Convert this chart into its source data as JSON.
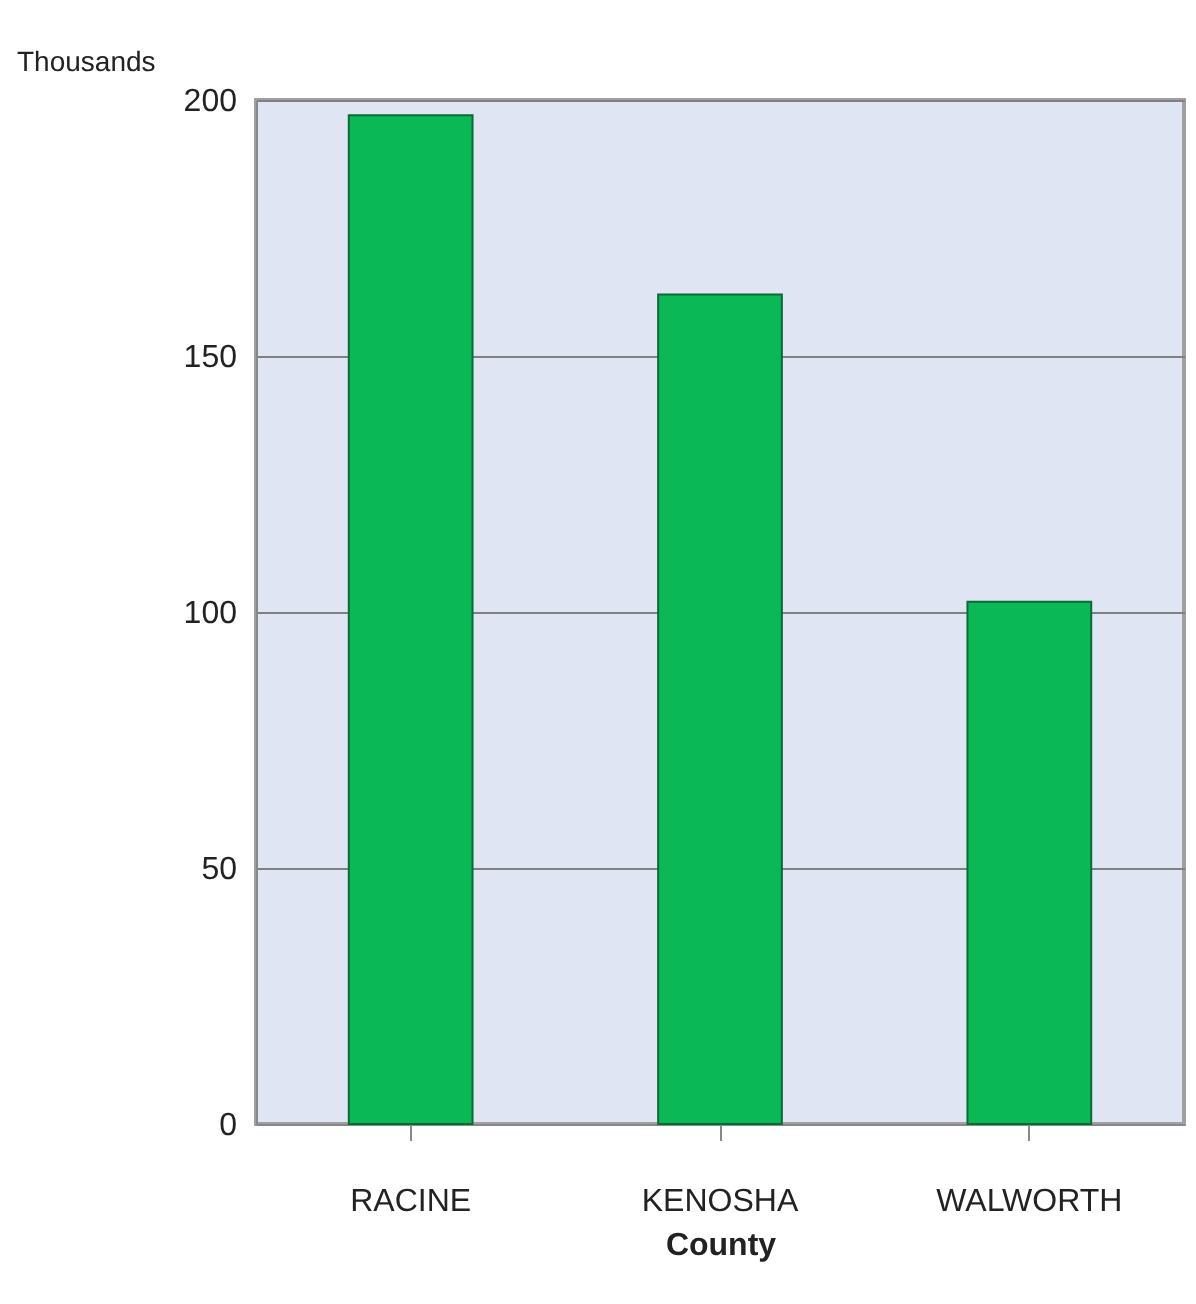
{
  "chart_data": {
    "type": "bar",
    "xlabel": "County",
    "ylabel": "Thousands",
    "categories": [
      "RACINE",
      "KENOSHA",
      "WALWORTH"
    ],
    "values": [
      197,
      162,
      102
    ],
    "color": "#0ab856",
    "ylim": [
      0,
      200
    ],
    "yticks": [
      0,
      50,
      100,
      150,
      200
    ],
    "grid": "y"
  }
}
